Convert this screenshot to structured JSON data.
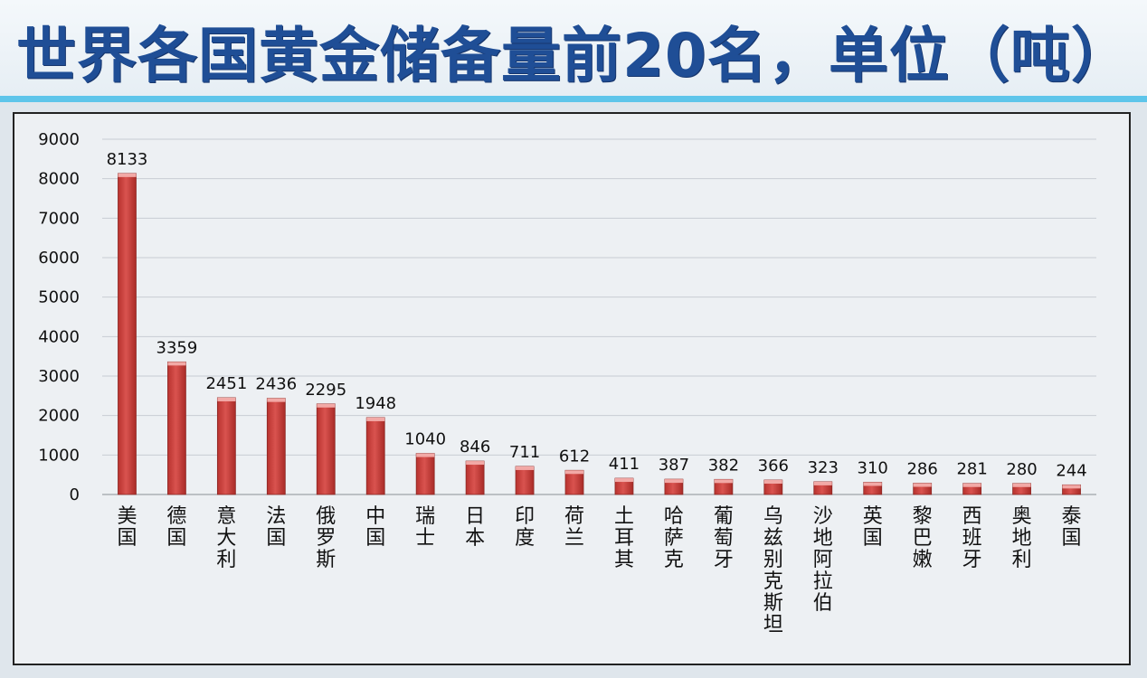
{
  "title": "世界各国黄金储备量前20名，单位（吨）",
  "colors": {
    "title": "#1f4e96",
    "accent_rule": "#5ec5ea",
    "bar": "#d9534f",
    "bar_edge": "#8c2a26",
    "grid": "#c8cdd3"
  },
  "chart_data": {
    "type": "bar",
    "categories": [
      "美国",
      "德国",
      "意大利",
      "法国",
      "俄罗斯",
      "中国",
      "瑞士",
      "日本",
      "印度",
      "荷兰",
      "土耳其",
      "哈萨克",
      "葡萄牙",
      "乌兹别克斯坦",
      "沙地阿拉伯",
      "英国",
      "黎巴嫩",
      "西班牙",
      "奥地利",
      "泰国"
    ],
    "values": [
      8133,
      3359,
      2451,
      2436,
      2295,
      1948,
      1040,
      846,
      711,
      612,
      411,
      387,
      382,
      366,
      323,
      310,
      286,
      281,
      280,
      244
    ],
    "data_labels": [
      "8133",
      "3359",
      "2451",
      "2436",
      "2295",
      "1948",
      "1040",
      "846",
      "711",
      "612",
      "411",
      "387",
      "382",
      "366",
      "323",
      "310",
      "286",
      "281",
      "280",
      "244"
    ],
    "y_ticks": [
      "0",
      "1000",
      "2000",
      "3000",
      "4000",
      "5000",
      "6000",
      "7000",
      "8000",
      "9000"
    ],
    "ylim": [
      0,
      9000
    ],
    "grid": true,
    "legend": "none"
  }
}
